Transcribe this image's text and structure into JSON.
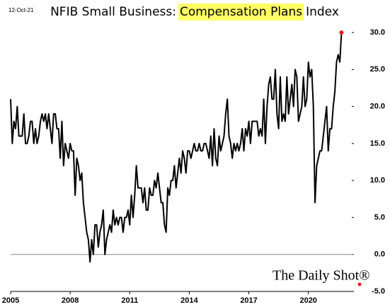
{
  "chart_data": {
    "type": "line",
    "date": "12-Oct-21",
    "title": [
      "NFIB Small Business:",
      "Compensation Plans",
      "Index"
    ],
    "watermark": "The Daily Shot®",
    "color": "#000000",
    "highlight_color": "#ffff66",
    "marker_color": "#e0201e",
    "x": [
      2005.0,
      2005.083,
      2005.167,
      2005.25,
      2005.333,
      2005.417,
      2005.5,
      2005.583,
      2005.667,
      2005.75,
      2005.833,
      2005.917,
      2006.0,
      2006.083,
      2006.167,
      2006.25,
      2006.333,
      2006.417,
      2006.5,
      2006.583,
      2006.667,
      2006.75,
      2006.833,
      2006.917,
      2007.0,
      2007.083,
      2007.167,
      2007.25,
      2007.333,
      2007.417,
      2007.5,
      2007.583,
      2007.667,
      2007.75,
      2007.833,
      2007.917,
      2008.0,
      2008.083,
      2008.167,
      2008.25,
      2008.333,
      2008.417,
      2008.5,
      2008.583,
      2008.667,
      2008.75,
      2008.833,
      2008.917,
      2009.0,
      2009.083,
      2009.167,
      2009.25,
      2009.333,
      2009.417,
      2009.5,
      2009.583,
      2009.667,
      2009.75,
      2009.833,
      2009.917,
      2010.0,
      2010.083,
      2010.167,
      2010.25,
      2010.333,
      2010.417,
      2010.5,
      2010.583,
      2010.667,
      2010.75,
      2010.833,
      2010.917,
      2011.0,
      2011.083,
      2011.167,
      2011.25,
      2011.333,
      2011.417,
      2011.5,
      2011.583,
      2011.667,
      2011.75,
      2011.833,
      2011.917,
      2012.0,
      2012.083,
      2012.167,
      2012.25,
      2012.333,
      2012.417,
      2012.5,
      2012.583,
      2012.667,
      2012.75,
      2012.833,
      2012.917,
      2013.0,
      2013.083,
      2013.167,
      2013.25,
      2013.333,
      2013.417,
      2013.5,
      2013.583,
      2013.667,
      2013.75,
      2013.833,
      2013.917,
      2014.0,
      2014.083,
      2014.167,
      2014.25,
      2014.333,
      2014.417,
      2014.5,
      2014.583,
      2014.667,
      2014.75,
      2014.833,
      2014.917,
      2015.0,
      2015.083,
      2015.167,
      2015.25,
      2015.333,
      2015.417,
      2015.5,
      2015.583,
      2015.667,
      2015.75,
      2015.833,
      2015.917,
      2016.0,
      2016.083,
      2016.167,
      2016.25,
      2016.333,
      2016.417,
      2016.5,
      2016.583,
      2016.667,
      2016.75,
      2016.833,
      2016.917,
      2017.0,
      2017.083,
      2017.167,
      2017.25,
      2017.333,
      2017.417,
      2017.5,
      2017.583,
      2017.667,
      2017.75,
      2017.833,
      2017.917,
      2018.0,
      2018.083,
      2018.167,
      2018.25,
      2018.333,
      2018.417,
      2018.5,
      2018.583,
      2018.667,
      2018.75,
      2018.833,
      2018.917,
      2019.0,
      2019.083,
      2019.167,
      2019.25,
      2019.333,
      2019.417,
      2019.5,
      2019.583,
      2019.667,
      2019.75,
      2019.833,
      2019.917,
      2020.0,
      2020.083,
      2020.167,
      2020.25,
      2020.333,
      2020.417,
      2020.5,
      2020.583,
      2020.667,
      2020.75,
      2020.833,
      2020.917,
      2021.0,
      2021.083,
      2021.167,
      2021.25,
      2021.333,
      2021.417,
      2021.5,
      2021.583,
      2021.667
    ],
    "values": [
      21,
      15,
      18,
      17,
      20,
      16,
      16,
      16,
      19,
      15,
      15,
      16,
      18,
      18,
      15,
      17,
      15,
      16,
      18,
      19,
      18,
      19,
      17,
      19,
      17,
      15,
      19,
      19,
      17,
      17,
      13,
      18,
      12,
      15,
      14,
      13,
      15,
      14,
      14,
      8,
      13,
      12,
      10,
      11,
      7,
      5,
      3,
      2,
      -1,
      2,
      0,
      4,
      4,
      1,
      3,
      4,
      6,
      0,
      2,
      3,
      4,
      3,
      6,
      4,
      5,
      4,
      5,
      5,
      3,
      5,
      5,
      6,
      4,
      8,
      5,
      8,
      12,
      9,
      9,
      9,
      7,
      9,
      6,
      6,
      9,
      8,
      8,
      10,
      9,
      11,
      9,
      7,
      7,
      4,
      3,
      9,
      8,
      10,
      10,
      12,
      9,
      11,
      13,
      11,
      14,
      13,
      11,
      14,
      14,
      13,
      14,
      15,
      14,
      14,
      15,
      14,
      14,
      15,
      15,
      14,
      13,
      16,
      12,
      17,
      13,
      12,
      16,
      14,
      15,
      16,
      19,
      21,
      16,
      15,
      13,
      15,
      14,
      15,
      14,
      15,
      17,
      14,
      17,
      16,
      18,
      15,
      18,
      18,
      18,
      18,
      16,
      17,
      16,
      21,
      15,
      20,
      23,
      24,
      21,
      21,
      25,
      19,
      17,
      24,
      18,
      19,
      18,
      24,
      19,
      21,
      23,
      20,
      25,
      24,
      18,
      19,
      20,
      24,
      20,
      21,
      26,
      24,
      25,
      20,
      7,
      12,
      13,
      14,
      14,
      16,
      18,
      20,
      14,
      17,
      17,
      20,
      22,
      26,
      27,
      26,
      30
    ],
    "xlim": [
      2005,
      2021.9
    ],
    "xticks": [
      2005,
      2008,
      2011,
      2014,
      2017,
      2020
    ],
    "ylim": [
      -5,
      30
    ],
    "yticks": [
      {
        "value": -5,
        "label": "-5.0"
      },
      {
        "value": 0,
        "label": "0.0"
      },
      {
        "value": 5,
        "label": "5.0"
      },
      {
        "value": 10,
        "label": "10.0"
      },
      {
        "value": 15,
        "label": "15.0"
      },
      {
        "value": 20,
        "label": "20.0"
      },
      {
        "value": 25,
        "label": "25.0"
      },
      {
        "value": 30,
        "label": "30.0"
      }
    ],
    "zero_line": 0
  }
}
